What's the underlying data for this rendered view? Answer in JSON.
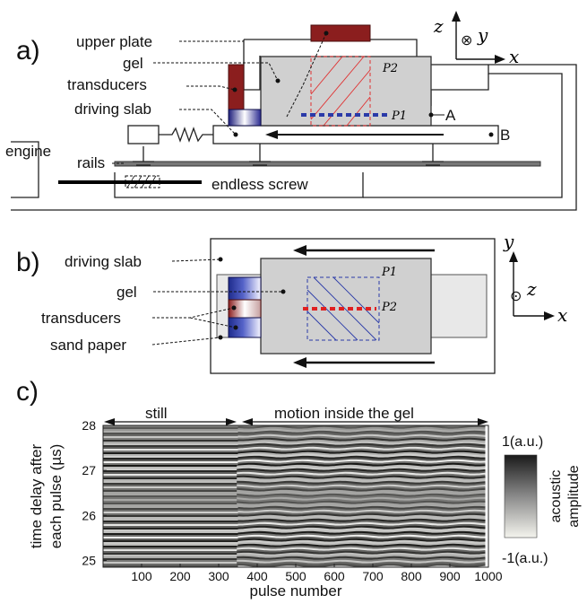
{
  "panel_a": {
    "panel_label": "a)",
    "labels": {
      "upper_plate": "upper plate",
      "gel": "gel",
      "transducers": "transducers",
      "driving_slab": "driving slab",
      "engine": "engine",
      "rails": "rails",
      "endless_screw": "endless screw",
      "point_a": "A",
      "point_b": "B",
      "p1": "P1",
      "p2": "P2"
    },
    "axes": {
      "z": "z",
      "y": "y",
      "x": "x",
      "y_symbol": "⊗"
    }
  },
  "panel_b": {
    "panel_label": "b)",
    "labels": {
      "driving_slab": "driving slab",
      "gel": "gel",
      "transducers": "transducers",
      "sand_paper": "sand paper",
      "p1": "P1",
      "p2": "P2"
    },
    "axes": {
      "y": "y",
      "z": "z",
      "x": "x",
      "z_symbol": "⊙"
    }
  },
  "panel_c": {
    "panel_label": "c)",
    "annotations": {
      "still": "still",
      "motion": "motion inside the gel"
    },
    "colorbar": {
      "max_label": "1(a.u.)",
      "min_label": "-1(a.u.)",
      "title_line1": "acoustic",
      "title_line2": "amplitude"
    },
    "colors": {
      "dark": "#1a1a1a",
      "light": "#f2f2ee"
    },
    "chart_data": {
      "type": "heatmap",
      "xlabel": "pulse number",
      "ylabel_line1": "time delay after",
      "ylabel_line2": "each pulse (µs)",
      "xlim": [
        0,
        1000
      ],
      "ylim": [
        24.85,
        28
      ],
      "x_ticks": [
        100,
        200,
        300,
        400,
        500,
        600,
        700,
        800,
        900,
        1000
      ],
      "y_ticks": [
        25,
        26,
        27,
        28
      ],
      "transition_pulse": 350,
      "clim": [
        -1,
        1
      ]
    }
  }
}
